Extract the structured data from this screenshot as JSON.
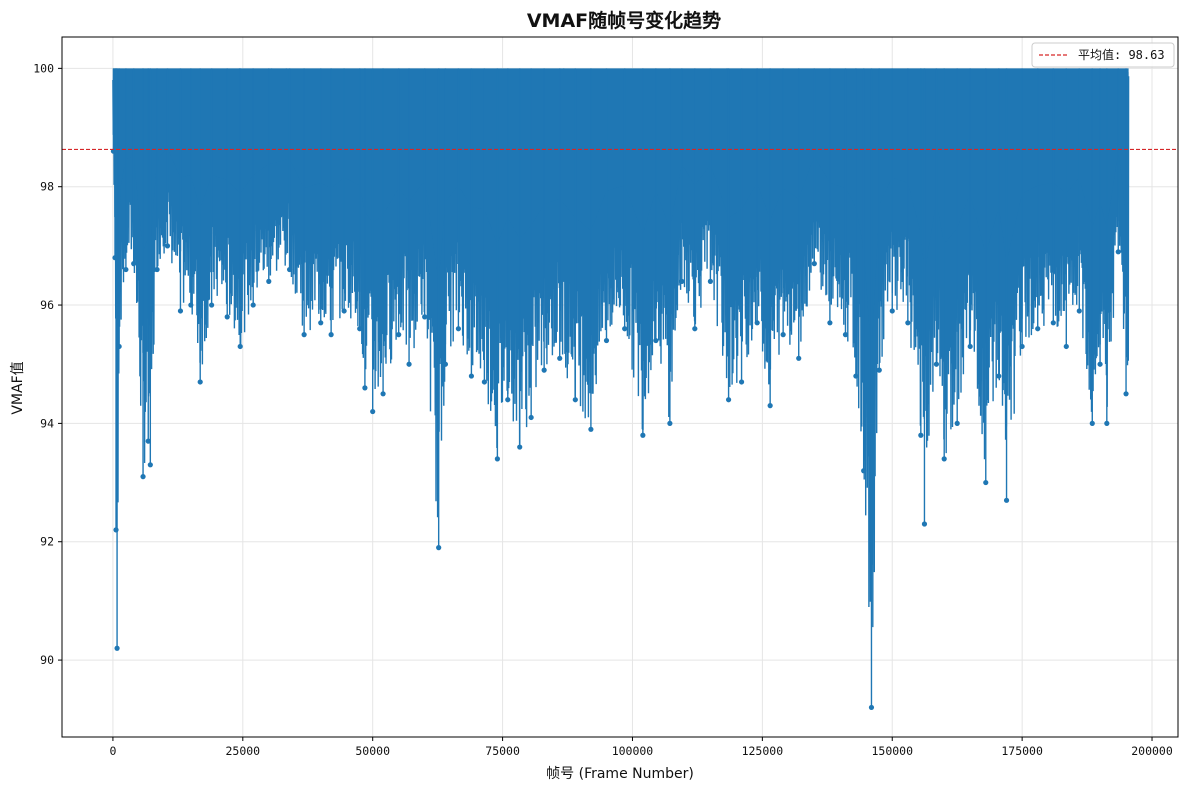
{
  "chart_data": {
    "type": "line",
    "title": "VMAF随帧号变化趋势",
    "xlabel": "帧号 (Frame Number)",
    "ylabel": "VMAF值",
    "xlim": [
      -9800,
      205000
    ],
    "ylim": [
      88.7,
      100.53
    ],
    "xticks": [
      0,
      25000,
      50000,
      75000,
      100000,
      125000,
      150000,
      175000,
      200000
    ],
    "xtick_labels": [
      "0",
      "25000",
      "50000",
      "75000",
      "100000",
      "125000",
      "150000",
      "175000",
      "200000"
    ],
    "yticks": [
      90,
      92,
      94,
      96,
      98,
      100
    ],
    "ytick_labels": [
      "90",
      "92",
      "94",
      "96",
      "98",
      "100"
    ],
    "grid": true,
    "legend_position": "top-right",
    "series": [
      {
        "name": "",
        "color": "#1f77b4",
        "style": "line with circle markers",
        "x_start": 0,
        "x_end": 195500,
        "upper_value": 100,
        "low_points": [
          {
            "x": 100,
            "y": 98.6
          },
          {
            "x": 400,
            "y": 96.8
          },
          {
            "x": 600,
            "y": 92.2
          },
          {
            "x": 800,
            "y": 90.2
          },
          {
            "x": 1200,
            "y": 95.3
          },
          {
            "x": 2500,
            "y": 96.6
          },
          {
            "x": 4000,
            "y": 96.7
          },
          {
            "x": 5800,
            "y": 93.1
          },
          {
            "x": 6800,
            "y": 93.7
          },
          {
            "x": 7200,
            "y": 93.3
          },
          {
            "x": 8500,
            "y": 96.6
          },
          {
            "x": 10500,
            "y": 97.0
          },
          {
            "x": 13000,
            "y": 95.9
          },
          {
            "x": 15000,
            "y": 96.0
          },
          {
            "x": 16800,
            "y": 94.7
          },
          {
            "x": 19000,
            "y": 96.0
          },
          {
            "x": 22000,
            "y": 95.8
          },
          {
            "x": 24500,
            "y": 95.3
          },
          {
            "x": 27000,
            "y": 96.0
          },
          {
            "x": 30000,
            "y": 96.4
          },
          {
            "x": 34000,
            "y": 96.6
          },
          {
            "x": 36800,
            "y": 95.5
          },
          {
            "x": 40000,
            "y": 95.7
          },
          {
            "x": 42000,
            "y": 95.5
          },
          {
            "x": 44500,
            "y": 95.9
          },
          {
            "x": 47500,
            "y": 95.6
          },
          {
            "x": 48500,
            "y": 94.6
          },
          {
            "x": 50000,
            "y": 94.2
          },
          {
            "x": 52000,
            "y": 94.5
          },
          {
            "x": 55000,
            "y": 95.5
          },
          {
            "x": 57000,
            "y": 95.0
          },
          {
            "x": 60000,
            "y": 95.8
          },
          {
            "x": 62700,
            "y": 91.9
          },
          {
            "x": 64000,
            "y": 95.0
          },
          {
            "x": 66500,
            "y": 95.6
          },
          {
            "x": 69000,
            "y": 94.8
          },
          {
            "x": 71500,
            "y": 94.7
          },
          {
            "x": 74000,
            "y": 93.4
          },
          {
            "x": 76000,
            "y": 94.4
          },
          {
            "x": 78300,
            "y": 93.6
          },
          {
            "x": 80500,
            "y": 94.1
          },
          {
            "x": 83000,
            "y": 94.9
          },
          {
            "x": 86000,
            "y": 95.1
          },
          {
            "x": 89000,
            "y": 94.4
          },
          {
            "x": 92000,
            "y": 93.9
          },
          {
            "x": 95000,
            "y": 95.4
          },
          {
            "x": 98500,
            "y": 95.6
          },
          {
            "x": 102000,
            "y": 93.8
          },
          {
            "x": 104500,
            "y": 95.4
          },
          {
            "x": 107200,
            "y": 94.0
          },
          {
            "x": 109500,
            "y": 96.4
          },
          {
            "x": 112000,
            "y": 95.6
          },
          {
            "x": 115000,
            "y": 96.4
          },
          {
            "x": 118500,
            "y": 94.4
          },
          {
            "x": 121000,
            "y": 94.7
          },
          {
            "x": 124000,
            "y": 95.7
          },
          {
            "x": 126500,
            "y": 94.3
          },
          {
            "x": 129000,
            "y": 95.5
          },
          {
            "x": 132000,
            "y": 95.1
          },
          {
            "x": 135000,
            "y": 96.7
          },
          {
            "x": 138000,
            "y": 95.7
          },
          {
            "x": 141000,
            "y": 95.5
          },
          {
            "x": 143000,
            "y": 94.8
          },
          {
            "x": 144500,
            "y": 93.2
          },
          {
            "x": 146000,
            "y": 89.2
          },
          {
            "x": 147500,
            "y": 94.9
          },
          {
            "x": 150000,
            "y": 95.9
          },
          {
            "x": 153000,
            "y": 95.7
          },
          {
            "x": 155500,
            "y": 93.8
          },
          {
            "x": 156200,
            "y": 92.3
          },
          {
            "x": 158500,
            "y": 95.0
          },
          {
            "x": 160000,
            "y": 93.4
          },
          {
            "x": 162500,
            "y": 94.0
          },
          {
            "x": 165000,
            "y": 95.3
          },
          {
            "x": 168000,
            "y": 93.0
          },
          {
            "x": 170500,
            "y": 94.8
          },
          {
            "x": 172000,
            "y": 92.7
          },
          {
            "x": 175000,
            "y": 95.3
          },
          {
            "x": 178000,
            "y": 95.6
          },
          {
            "x": 181000,
            "y": 95.7
          },
          {
            "x": 183500,
            "y": 95.3
          },
          {
            "x": 186000,
            "y": 95.9
          },
          {
            "x": 188500,
            "y": 94.0
          },
          {
            "x": 190000,
            "y": 95.0
          },
          {
            "x": 191300,
            "y": 94.0
          },
          {
            "x": 193500,
            "y": 96.9
          },
          {
            "x": 195000,
            "y": 94.5
          }
        ]
      }
    ],
    "reference_line": {
      "label": "平均值: 98.63",
      "value": 98.63,
      "color": "#d62728",
      "style": "dashed"
    }
  }
}
